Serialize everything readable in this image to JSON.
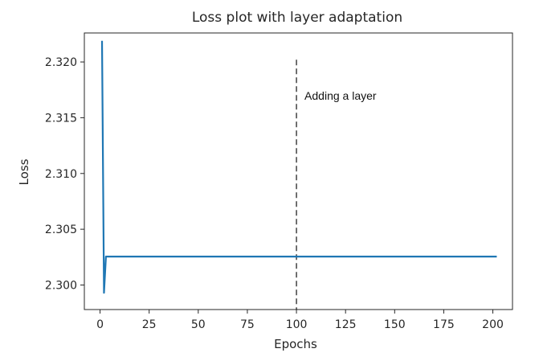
{
  "chart_data": {
    "type": "line",
    "title": "Loss plot with layer adaptation",
    "xlabel": "Epochs",
    "ylabel": "Loss",
    "xlim": [
      -8,
      210
    ],
    "ylim": [
      2.2978,
      2.3226
    ],
    "xticks": [
      0,
      25,
      50,
      75,
      100,
      125,
      150,
      175,
      200
    ],
    "xtick_labels": [
      "0",
      "25",
      "50",
      "75",
      "100",
      "125",
      "150",
      "175",
      "200"
    ],
    "yticks": [
      2.3,
      2.305,
      2.31,
      2.315,
      2.32
    ],
    "ytick_labels": [
      "2.300",
      "2.305",
      "2.310",
      "2.315",
      "2.320"
    ],
    "grid": false,
    "legend": "none",
    "series": [
      {
        "color": "#1f77b4",
        "x": [
          1,
          2,
          3,
          4,
          202
        ],
        "values": [
          2.3219,
          2.2993,
          2.30255,
          2.30255,
          2.30255
        ]
      }
    ],
    "annotations": [
      {
        "text": "Adding a layer",
        "x": 100,
        "y_from": 2.2978,
        "y_to": 2.3202,
        "line_style": "dashed",
        "text_y": 2.3166
      }
    ]
  }
}
